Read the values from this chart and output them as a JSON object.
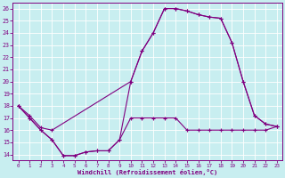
{
  "xlabel": "Windchill (Refroidissement éolien,°C)",
  "bg_color": "#c8eef0",
  "grid_color": "#ffffff",
  "line_color": "#800080",
  "xlim": [
    -0.5,
    23.5
  ],
  "ylim": [
    13.5,
    26.5
  ],
  "xticks": [
    0,
    1,
    2,
    3,
    4,
    5,
    6,
    7,
    8,
    9,
    10,
    11,
    12,
    13,
    14,
    15,
    16,
    17,
    18,
    19,
    20,
    21,
    22,
    23
  ],
  "yticks": [
    14,
    15,
    16,
    17,
    18,
    19,
    20,
    21,
    22,
    23,
    24,
    25,
    26
  ],
  "line1_x": [
    0,
    1,
    2,
    3,
    4,
    5,
    6,
    7,
    8,
    9,
    10,
    11,
    12,
    13,
    14,
    15,
    16,
    17,
    18,
    19,
    20,
    21,
    22,
    23
  ],
  "line1_y": [
    18.0,
    17.0,
    16.0,
    15.2,
    13.9,
    13.9,
    14.2,
    14.3,
    14.3,
    15.2,
    17.0,
    17.0,
    17.0,
    17.0,
    17.0,
    16.0,
    16.0,
    16.0,
    16.0,
    16.0,
    16.0,
    16.0,
    16.0,
    16.3
  ],
  "line2_x": [
    0,
    1,
    2,
    3,
    4,
    5,
    6,
    7,
    8,
    9,
    10,
    11,
    12,
    13,
    14,
    15,
    16,
    17,
    18,
    19,
    20,
    21,
    22,
    23
  ],
  "line2_y": [
    18.0,
    17.0,
    16.0,
    15.2,
    13.9,
    13.9,
    14.2,
    14.3,
    14.3,
    15.2,
    20.0,
    22.5,
    24.0,
    26.0,
    26.0,
    25.8,
    25.5,
    25.3,
    25.2,
    23.2,
    20.0,
    17.2,
    16.5,
    16.3
  ],
  "line3_x": [
    0,
    1,
    2,
    3,
    10,
    11,
    12,
    13,
    14,
    15,
    16,
    17,
    18,
    19,
    20,
    21,
    22,
    23
  ],
  "line3_y": [
    18.0,
    17.2,
    16.2,
    16.0,
    20.0,
    22.5,
    24.0,
    26.0,
    26.0,
    25.8,
    25.5,
    25.3,
    25.2,
    23.2,
    20.0,
    17.2,
    16.5,
    16.3
  ]
}
